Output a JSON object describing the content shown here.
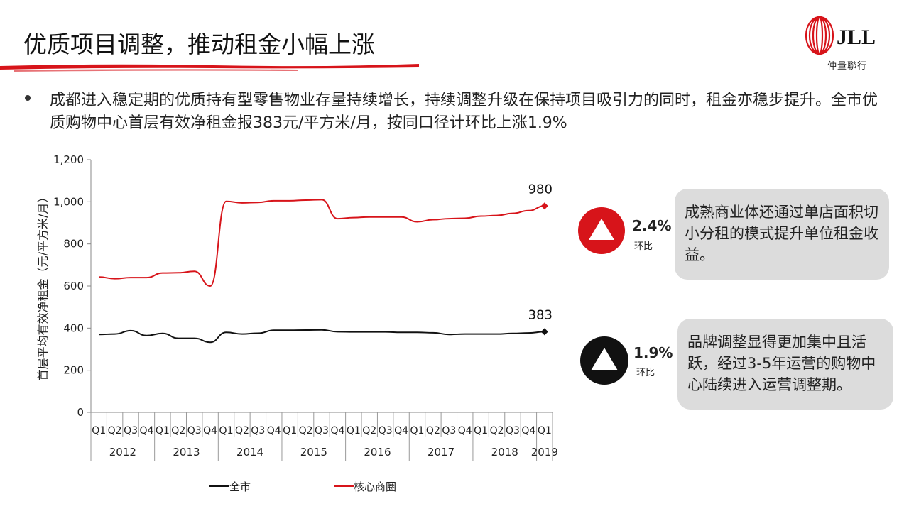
{
  "slide": {
    "title": "优质项目调整，推动租金小幅上涨",
    "bullet": "成都进入稳定期的优质持有型零售物业存量持续增长，持续调整升级在保持项目吸引力的同时，租金亦稳步提升。全市优质购物中心首层有效净租金报383元/平方米/月，按同口径计环比上涨1.9%"
  },
  "logo": {
    "text": "JLL",
    "subtitle": "仲量聯行"
  },
  "colors": {
    "red": "#d7141a",
    "black": "#111111",
    "callout_bg": "#dcdcdc"
  },
  "badges": [
    {
      "pct": "2.4%",
      "label": "环比",
      "color": "#d7141a",
      "icon": "up-triangle-icon"
    },
    {
      "pct": "1.9%",
      "label": "环比",
      "color": "#111111",
      "icon": "up-triangle-icon"
    }
  ],
  "callouts": [
    "成熟商业体还通过单店面积切小分租的模式提升单位租金收益。",
    "品牌调整显得更加集中且活跃，经过3-5年运营的购物中心陆续进入运营调整期。"
  ],
  "chart_data": {
    "type": "line",
    "ylabel": "首层平均有效净租金（元/平方米/月）",
    "ylim": [
      0,
      1200
    ],
    "yticks": [
      0,
      200,
      400,
      600,
      800,
      1000,
      1200
    ],
    "ytick_labels": [
      "0",
      "200",
      "400",
      "600",
      "800",
      "1,000",
      "1,200"
    ],
    "categories": [
      "Q1",
      "Q2",
      "Q3",
      "Q4",
      "Q1",
      "Q2",
      "Q3",
      "Q4",
      "Q1",
      "Q2",
      "Q3",
      "Q4",
      "Q1",
      "Q2",
      "Q3",
      "Q4",
      "Q1",
      "Q2",
      "Q3",
      "Q4",
      "Q1",
      "Q2",
      "Q3",
      "Q4",
      "Q1",
      "Q2",
      "Q3",
      "Q4",
      "Q1"
    ],
    "years": [
      {
        "label": "2012",
        "count": 4
      },
      {
        "label": "2013",
        "count": 4
      },
      {
        "label": "2014",
        "count": 4
      },
      {
        "label": "2015",
        "count": 4
      },
      {
        "label": "2016",
        "count": 4
      },
      {
        "label": "2017",
        "count": 4
      },
      {
        "label": "2018",
        "count": 4
      },
      {
        "label": "2019",
        "count": 1
      }
    ],
    "series": [
      {
        "name": "全市",
        "color": "#111111",
        "values": [
          370,
          372,
          388,
          365,
          375,
          352,
          352,
          333,
          380,
          372,
          376,
          390,
          390,
          391,
          392,
          383,
          382,
          382,
          382,
          380,
          380,
          378,
          370,
          372,
          372,
          372,
          375,
          377,
          383
        ],
        "end_label": "383"
      },
      {
        "name": "核心商圈",
        "color": "#d7141a",
        "values": [
          643,
          635,
          640,
          640,
          662,
          663,
          670,
          600,
          1002,
          995,
          997,
          1005,
          1005,
          1008,
          1010,
          920,
          925,
          928,
          928,
          928,
          905,
          915,
          920,
          922,
          932,
          935,
          945,
          958,
          980
        ],
        "end_label": "980"
      }
    ],
    "legend_position": "bottom"
  }
}
